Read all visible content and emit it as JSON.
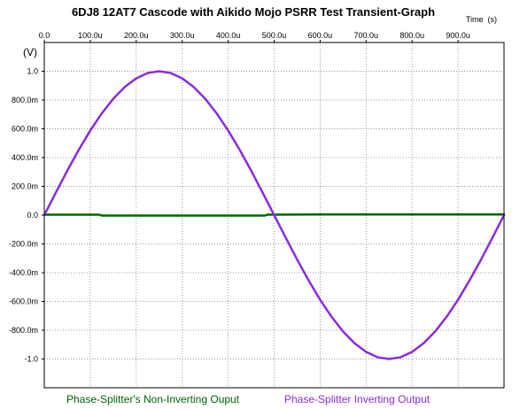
{
  "chart_data": {
    "type": "line",
    "title": "6DJ8 12AT7 Cascode with Aikido Mojo PSRR Test Transient-Graph",
    "xlabel": "Time  (s)",
    "ylabel": "(V)",
    "x_tick_labels": [
      "0.0",
      "100.0u",
      "200.0u",
      "300.0u",
      "400.0u",
      "500.0u",
      "600.0u",
      "700.0u",
      "800.0u",
      "900.0u"
    ],
    "x_tick_values": [
      0,
      100,
      200,
      300,
      400,
      500,
      600,
      700,
      800,
      900
    ],
    "y_tick_labels": [
      "1.0",
      "800.0m",
      "600.0m",
      "400.0m",
      "200.0m",
      "0.0",
      "-200.0m",
      "-400.0m",
      "-600.0m",
      "-800.0m",
      "-1.0"
    ],
    "y_tick_values": [
      1.0,
      0.8,
      0.6,
      0.4,
      0.2,
      0.0,
      -0.2,
      -0.4,
      -0.6,
      -0.8,
      -1.0
    ],
    "xlim": [
      0,
      1000
    ],
    "ylim": [
      -1.2,
      1.2
    ],
    "x_units": "microseconds",
    "grid": true,
    "legend_position": "bottom",
    "series": [
      {
        "name": "Phase-Splitter's Non-Inverting Ouput",
        "color": "#006400",
        "x": [
          0,
          120,
          125,
          480,
          485,
          600,
          1000
        ],
        "y": [
          0.003,
          0.003,
          -0.003,
          -0.003,
          0.003,
          0.005,
          0.005
        ]
      },
      {
        "name": "Phase-Splitter Inverting Output",
        "color": "#8a2be2",
        "x": [
          0,
          25,
          50,
          75,
          100,
          125,
          150,
          175,
          200,
          225,
          250,
          275,
          300,
          325,
          350,
          375,
          400,
          425,
          450,
          475,
          500,
          525,
          550,
          575,
          600,
          625,
          650,
          675,
          700,
          725,
          750,
          775,
          800,
          825,
          850,
          875,
          900,
          925,
          950,
          975,
          1000
        ],
        "y": [
          0.0,
          0.156,
          0.309,
          0.454,
          0.588,
          0.707,
          0.809,
          0.891,
          0.951,
          0.988,
          1.0,
          0.988,
          0.951,
          0.891,
          0.809,
          0.707,
          0.588,
          0.454,
          0.309,
          0.156,
          0.0,
          -0.156,
          -0.309,
          -0.454,
          -0.588,
          -0.707,
          -0.809,
          -0.891,
          -0.951,
          -0.988,
          -1.0,
          -0.988,
          -0.951,
          -0.891,
          -0.809,
          -0.707,
          -0.588,
          -0.454,
          -0.309,
          -0.156,
          0.0
        ]
      }
    ]
  }
}
